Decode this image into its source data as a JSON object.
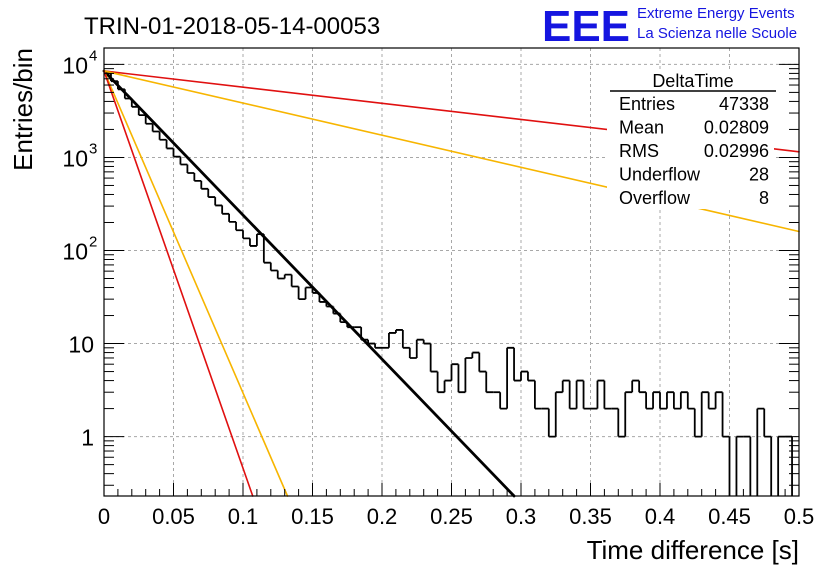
{
  "chart_data": {
    "type": "histogram",
    "title": "TRIN-01-2018-05-14-00053",
    "xlabel": "Time difference [s]",
    "ylabel": "Entries/bin",
    "x_range": [
      0,
      0.5
    ],
    "y_range": [
      0.23,
      15000
    ],
    "y_scale": "log",
    "grid": true,
    "x_ticks": [
      {
        "v": 0,
        "label": "0"
      },
      {
        "v": 0.05,
        "label": "0.05"
      },
      {
        "v": 0.1,
        "label": "0.1"
      },
      {
        "v": 0.15,
        "label": "0.15"
      },
      {
        "v": 0.2,
        "label": "0.2"
      },
      {
        "v": 0.25,
        "label": "0.25"
      },
      {
        "v": 0.3,
        "label": "0.3"
      },
      {
        "v": 0.35,
        "label": "0.35"
      },
      {
        "v": 0.4,
        "label": "0.4"
      },
      {
        "v": 0.45,
        "label": "0.45"
      },
      {
        "v": 0.5,
        "label": "0.5"
      }
    ],
    "y_ticks": [
      {
        "v": 1,
        "base": "1",
        "exp": ""
      },
      {
        "v": 10,
        "base": "10",
        "exp": ""
      },
      {
        "v": 100,
        "base": "10",
        "exp": "2"
      },
      {
        "v": 1000,
        "base": "10",
        "exp": "3"
      },
      {
        "v": 10000,
        "base": "10",
        "exp": "4"
      }
    ],
    "histogram": {
      "bin_width": 0.005,
      "color": "#000000",
      "counts": [
        8000,
        6600,
        5400,
        4300,
        3500,
        2850,
        2300,
        1900,
        1550,
        1250,
        1020,
        840,
        680,
        560,
        460,
        375,
        305,
        248,
        203,
        165,
        135,
        112,
        150,
        74,
        61,
        50,
        55,
        41,
        30,
        40,
        35,
        28,
        25,
        21,
        17,
        15,
        15,
        11,
        10,
        9,
        9,
        13,
        14,
        9,
        7,
        11,
        10,
        5,
        3,
        4,
        6,
        3,
        7,
        8,
        5,
        3,
        3,
        2,
        9,
        4,
        5,
        4,
        2,
        2,
        1,
        3,
        4,
        2,
        4,
        2,
        2,
        4,
        2,
        2,
        1,
        3,
        4,
        3,
        2,
        3,
        2,
        3,
        2,
        3,
        2,
        1,
        3,
        2,
        3,
        1,
        0,
        1,
        1,
        0,
        2,
        1,
        0,
        1,
        1,
        0
      ]
    },
    "fit_lines": [
      {
        "name": "fit",
        "color": "#000000",
        "width": 2.8,
        "x": [
          0,
          0.295
        ],
        "y": [
          8500,
          0.23
        ]
      },
      {
        "name": "ref-red-slow",
        "color": "#e01010",
        "width": 1.6,
        "x": [
          0,
          0.5
        ],
        "y": [
          8500,
          1150
        ]
      },
      {
        "name": "ref-orange-slow",
        "color": "#f7b500",
        "width": 1.6,
        "x": [
          0,
          0.5
        ],
        "y": [
          8500,
          160
        ]
      },
      {
        "name": "ref-orange-fast",
        "color": "#f7b500",
        "width": 1.6,
        "x": [
          0,
          0.132
        ],
        "y": [
          8500,
          0.23
        ]
      },
      {
        "name": "ref-red-fast",
        "color": "#e01010",
        "width": 1.6,
        "x": [
          0,
          0.107
        ],
        "y": [
          8500,
          0.23
        ]
      }
    ]
  },
  "stats_box": {
    "title": "DeltaTime",
    "rows": [
      {
        "label": "Entries",
        "value": "47338"
      },
      {
        "label": "Mean",
        "value": "0.02809"
      },
      {
        "label": "RMS",
        "value": "0.02996"
      },
      {
        "label": "Underflow",
        "value": "28"
      },
      {
        "label": "Overflow",
        "value": "8"
      }
    ]
  },
  "logo": {
    "text": "EEE",
    "line1": "Extreme Energy Events",
    "line2": "La Scienza nelle Scuole",
    "color": "#1515e0"
  }
}
